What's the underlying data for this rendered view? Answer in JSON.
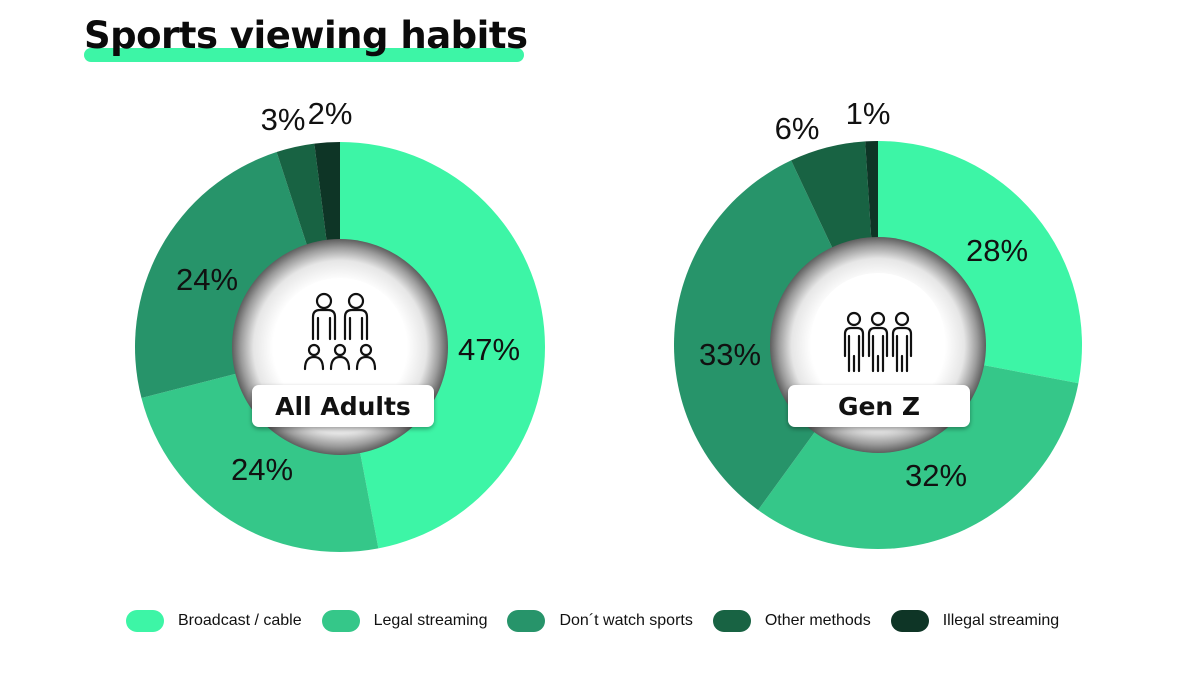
{
  "title": "Sports viewing habits",
  "colors": {
    "title_underline": "#3df5a6",
    "broadcast_cable": "#3df5a6",
    "legal_streaming": "#35c789",
    "dont_watch": "#27946a",
    "other_methods": "#186343",
    "illegal_streaming": "#0e3526"
  },
  "chart_data": [
    {
      "type": "pie",
      "variant": "donut",
      "center_label": "All Adults",
      "center_icon": "group-of-adults-and-children-icon",
      "categories": [
        "Broadcast / cable",
        "Legal streaming",
        "Don´t watch sports",
        "Other methods",
        "Illegal streaming"
      ],
      "values": [
        47,
        24,
        24,
        3,
        2
      ],
      "labels": [
        "47%",
        "24%",
        "24%",
        "3%",
        "2%"
      ],
      "start": "top",
      "direction": "clockwise"
    },
    {
      "type": "pie",
      "variant": "donut",
      "center_label": "Gen Z",
      "center_icon": "three-young-people-icon",
      "categories": [
        "Broadcast / cable",
        "Legal streaming",
        "Don´t watch sports",
        "Other methods",
        "Illegal streaming"
      ],
      "values": [
        28,
        32,
        33,
        6,
        1
      ],
      "labels": [
        "28%",
        "32%",
        "33%",
        "6%",
        "1%"
      ],
      "start": "top",
      "direction": "clockwise"
    }
  ],
  "legend": {
    "placement": "bottom",
    "items": [
      {
        "label": "Broadcast / cable",
        "color": "#3df5a6"
      },
      {
        "label": "Legal streaming",
        "color": "#35c789"
      },
      {
        "label": "Don´t watch sports",
        "color": "#27946a"
      },
      {
        "label": "Other methods",
        "color": "#186343"
      },
      {
        "label": "Illegal streaming",
        "color": "#0e3526"
      }
    ]
  }
}
